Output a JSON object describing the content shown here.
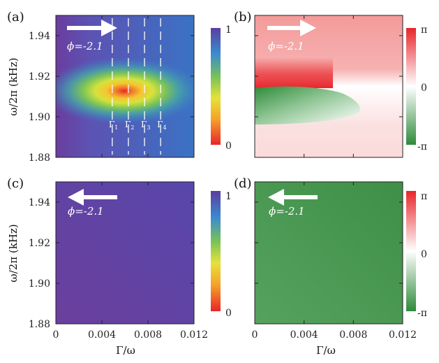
{
  "chart_data": [
    {
      "panel": "(a)",
      "type": "heatmap",
      "xlim": [
        0,
        0.012
      ],
      "ylim": [
        1.88,
        1.95
      ],
      "y_ticks": [
        "1.88",
        "1.90",
        "1.92",
        "1.94"
      ],
      "y_tick_values": [
        1.88,
        1.9,
        1.92,
        1.94
      ],
      "ylabel": "ω/2π (kHz)",
      "colorbar": {
        "min_label": "0",
        "max_label": "1",
        "colormap": "rainbow"
      },
      "arrow_direction": "right",
      "phi_label": "ϕ=-2.1",
      "peak": {
        "x": 0.0065,
        "y": 1.912,
        "value": 0.0
      },
      "gamma_markers": [
        {
          "name": "Γ",
          "sub": "1",
          "x": 0.0049
        },
        {
          "name": "Γ",
          "sub": "2",
          "x": 0.0063
        },
        {
          "name": "Γ",
          "sub": "3",
          "x": 0.0077
        },
        {
          "name": "Γ",
          "sub": "4",
          "x": 0.0091
        }
      ],
      "grid": false
    },
    {
      "panel": "(b)",
      "type": "heatmap",
      "xlim": [
        0,
        0.012
      ],
      "ylim": [
        1.88,
        1.95
      ],
      "colorbar": {
        "min_label": "-π",
        "mid_label": "0",
        "max_label": "π",
        "colormap": "red-white-green"
      },
      "arrow_direction": "right",
      "phi_label": "ϕ=-2.1",
      "grid": false
    },
    {
      "panel": "(c)",
      "type": "heatmap",
      "xlim": [
        0,
        0.012
      ],
      "ylim": [
        1.88,
        1.95
      ],
      "x_ticks": [
        "0",
        "0.004",
        "0.008",
        "0.012"
      ],
      "x_tick_values": [
        0,
        0.004,
        0.008,
        0.012
      ],
      "y_ticks": [
        "1.88",
        "1.90",
        "1.92",
        "1.94"
      ],
      "y_tick_values": [
        1.88,
        1.9,
        1.92,
        1.94
      ],
      "xlabel": "Γ/ω",
      "ylabel": "ω/2π (kHz)",
      "colorbar": {
        "min_label": "0",
        "max_label": "1",
        "colormap": "rainbow"
      },
      "arrow_direction": "left",
      "phi_label": "ϕ=-2.1",
      "grid": false
    },
    {
      "panel": "(d)",
      "type": "heatmap",
      "xlim": [
        0,
        0.012
      ],
      "ylim": [
        1.88,
        1.95
      ],
      "x_ticks": [
        "0",
        "0.004",
        "0.008",
        "0.012"
      ],
      "x_tick_values": [
        0,
        0.004,
        0.008,
        0.012
      ],
      "xlabel": "Γ/ω",
      "colorbar": {
        "min_label": "-π",
        "mid_label": "0",
        "max_label": "π",
        "colormap": "red-white-green"
      },
      "arrow_direction": "left",
      "phi_label": "ϕ=-2.1",
      "grid": false
    }
  ],
  "colors": {
    "rainbow_low": "#e8262b",
    "rainbow_high": "#5a3ea0",
    "phase_pos": "#e8262b",
    "phase_zero": "#ffffff",
    "phase_neg": "#2e8b3a",
    "marker_line": "#ffffff"
  }
}
